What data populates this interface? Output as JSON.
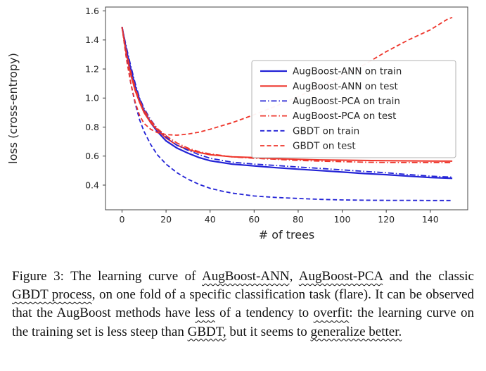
{
  "figure": {
    "underline_color": "#111111",
    "caption_segments": [
      {
        "text": "Figure 3:  The learning curve of ",
        "underline": false
      },
      {
        "text": "AugBoost-ANN",
        "underline": true
      },
      {
        "text": ", ",
        "underline": false
      },
      {
        "text": "AugBoost-PCA",
        "underline": true
      },
      {
        "text": " and the classic ",
        "underline": false
      },
      {
        "text": "GBDT process",
        "underline": true
      },
      {
        "text": ", on one fold of a specific classification task (flare). It can be observed that the AugBoost methods have ",
        "underline": false
      },
      {
        "text": "less",
        "underline": true
      },
      {
        "text": " of a tendency to ",
        "underline": false
      },
      {
        "text": "overfit",
        "underline": true
      },
      {
        "text": ": the learning curve on the training set is less steep than ",
        "underline": false
      },
      {
        "text": "GBDT,",
        "underline": true
      },
      {
        "text": " but it seems to ",
        "underline": false
      },
      {
        "text": "generalize better.",
        "underline": true
      }
    ]
  },
  "chart_data": {
    "type": "line",
    "title": "",
    "xlabel": "# of trees",
    "ylabel": "loss (cross-entropy)",
    "xlim": [
      -7.5,
      157
    ],
    "ylim": [
      0.23,
      1.627
    ],
    "xticks": [
      0,
      20,
      40,
      60,
      80,
      100,
      120,
      140
    ],
    "yticks": [
      0.4,
      0.6,
      0.8,
      1.0,
      1.2,
      1.4,
      1.6
    ],
    "grid": false,
    "legend_position": "upper right",
    "series": [
      {
        "name": "AugBoost-ANN on train",
        "color": "#2323d6",
        "style": "solid",
        "width": 2.2,
        "points": [
          [
            0,
            1.49
          ],
          [
            2,
            1.33
          ],
          [
            4,
            1.2
          ],
          [
            6,
            1.08
          ],
          [
            8,
            0.99
          ],
          [
            10,
            0.915
          ],
          [
            13,
            0.83
          ],
          [
            16,
            0.77
          ],
          [
            20,
            0.705
          ],
          [
            25,
            0.655
          ],
          [
            30,
            0.62
          ],
          [
            35,
            0.59
          ],
          [
            40,
            0.568
          ],
          [
            50,
            0.545
          ],
          [
            60,
            0.532
          ],
          [
            70,
            0.52
          ],
          [
            80,
            0.51
          ],
          [
            90,
            0.5
          ],
          [
            100,
            0.49
          ],
          [
            110,
            0.48
          ],
          [
            120,
            0.472
          ],
          [
            130,
            0.462
          ],
          [
            140,
            0.452
          ],
          [
            150,
            0.447
          ]
        ]
      },
      {
        "name": "AugBoost-ANN on test",
        "color": "#ee352b",
        "style": "solid",
        "width": 2.0,
        "points": [
          [
            0,
            1.49
          ],
          [
            2,
            1.3
          ],
          [
            4,
            1.16
          ],
          [
            6,
            1.05
          ],
          [
            8,
            0.97
          ],
          [
            10,
            0.9
          ],
          [
            13,
            0.83
          ],
          [
            16,
            0.78
          ],
          [
            20,
            0.725
          ],
          [
            25,
            0.675
          ],
          [
            30,
            0.645
          ],
          [
            35,
            0.625
          ],
          [
            40,
            0.61
          ],
          [
            50,
            0.595
          ],
          [
            60,
            0.59
          ],
          [
            70,
            0.582
          ],
          [
            80,
            0.578
          ],
          [
            90,
            0.574
          ],
          [
            100,
            0.572
          ],
          [
            110,
            0.57
          ],
          [
            120,
            0.568
          ],
          [
            130,
            0.567
          ],
          [
            140,
            0.566
          ],
          [
            150,
            0.565
          ]
        ]
      },
      {
        "name": "AugBoost-PCA on train",
        "color": "#2323d6",
        "style": "dashdot",
        "width": 1.8,
        "points": [
          [
            0,
            1.49
          ],
          [
            2,
            1.35
          ],
          [
            4,
            1.22
          ],
          [
            6,
            1.1
          ],
          [
            8,
            1.0
          ],
          [
            10,
            0.93
          ],
          [
            13,
            0.85
          ],
          [
            16,
            0.79
          ],
          [
            20,
            0.73
          ],
          [
            25,
            0.675
          ],
          [
            30,
            0.64
          ],
          [
            35,
            0.61
          ],
          [
            40,
            0.585
          ],
          [
            50,
            0.558
          ],
          [
            60,
            0.545
          ],
          [
            70,
            0.535
          ],
          [
            80,
            0.525
          ],
          [
            90,
            0.515
          ],
          [
            100,
            0.505
          ],
          [
            110,
            0.495
          ],
          [
            120,
            0.485
          ],
          [
            130,
            0.473
          ],
          [
            140,
            0.462
          ],
          [
            150,
            0.455
          ]
        ]
      },
      {
        "name": "AugBoost-PCA on test",
        "color": "#ee352b",
        "style": "dashdot",
        "width": 1.8,
        "points": [
          [
            0,
            1.49
          ],
          [
            2,
            1.32
          ],
          [
            4,
            1.18
          ],
          [
            6,
            1.07
          ],
          [
            8,
            0.98
          ],
          [
            10,
            0.92
          ],
          [
            13,
            0.845
          ],
          [
            16,
            0.79
          ],
          [
            20,
            0.74
          ],
          [
            25,
            0.69
          ],
          [
            30,
            0.655
          ],
          [
            35,
            0.63
          ],
          [
            40,
            0.615
          ],
          [
            50,
            0.595
          ],
          [
            60,
            0.585
          ],
          [
            70,
            0.578
          ],
          [
            80,
            0.57
          ],
          [
            90,
            0.565
          ],
          [
            100,
            0.562
          ],
          [
            110,
            0.558
          ],
          [
            120,
            0.556
          ],
          [
            130,
            0.556
          ],
          [
            140,
            0.556
          ],
          [
            150,
            0.555
          ]
        ]
      },
      {
        "name": "GBDT on train",
        "color": "#2323d6",
        "style": "dashed",
        "width": 1.8,
        "points": [
          [
            0,
            1.49
          ],
          [
            2,
            1.28
          ],
          [
            4,
            1.1
          ],
          [
            6,
            0.96
          ],
          [
            8,
            0.85
          ],
          [
            10,
            0.77
          ],
          [
            13,
            0.68
          ],
          [
            16,
            0.61
          ],
          [
            20,
            0.545
          ],
          [
            25,
            0.485
          ],
          [
            30,
            0.44
          ],
          [
            35,
            0.405
          ],
          [
            40,
            0.378
          ],
          [
            45,
            0.36
          ],
          [
            50,
            0.345
          ],
          [
            60,
            0.325
          ],
          [
            70,
            0.315
          ],
          [
            80,
            0.308
          ],
          [
            90,
            0.302
          ],
          [
            100,
            0.298
          ],
          [
            110,
            0.296
          ],
          [
            120,
            0.295
          ],
          [
            130,
            0.295
          ],
          [
            140,
            0.294
          ],
          [
            150,
            0.294
          ]
        ]
      },
      {
        "name": "GBDT on test",
        "color": "#ee352b",
        "style": "dashed",
        "width": 1.8,
        "points": [
          [
            0,
            1.49
          ],
          [
            2,
            1.27
          ],
          [
            4,
            1.1
          ],
          [
            6,
            0.97
          ],
          [
            8,
            0.88
          ],
          [
            10,
            0.825
          ],
          [
            13,
            0.785
          ],
          [
            16,
            0.762
          ],
          [
            20,
            0.748
          ],
          [
            25,
            0.744
          ],
          [
            30,
            0.752
          ],
          [
            35,
            0.765
          ],
          [
            40,
            0.785
          ],
          [
            50,
            0.83
          ],
          [
            60,
            0.885
          ],
          [
            70,
            0.945
          ],
          [
            80,
            1.01
          ],
          [
            90,
            1.08
          ],
          [
            100,
            1.15
          ],
          [
            110,
            1.23
          ],
          [
            120,
            1.32
          ],
          [
            130,
            1.4
          ],
          [
            140,
            1.47
          ],
          [
            148,
            1.545
          ],
          [
            150,
            1.555
          ]
        ]
      }
    ]
  }
}
